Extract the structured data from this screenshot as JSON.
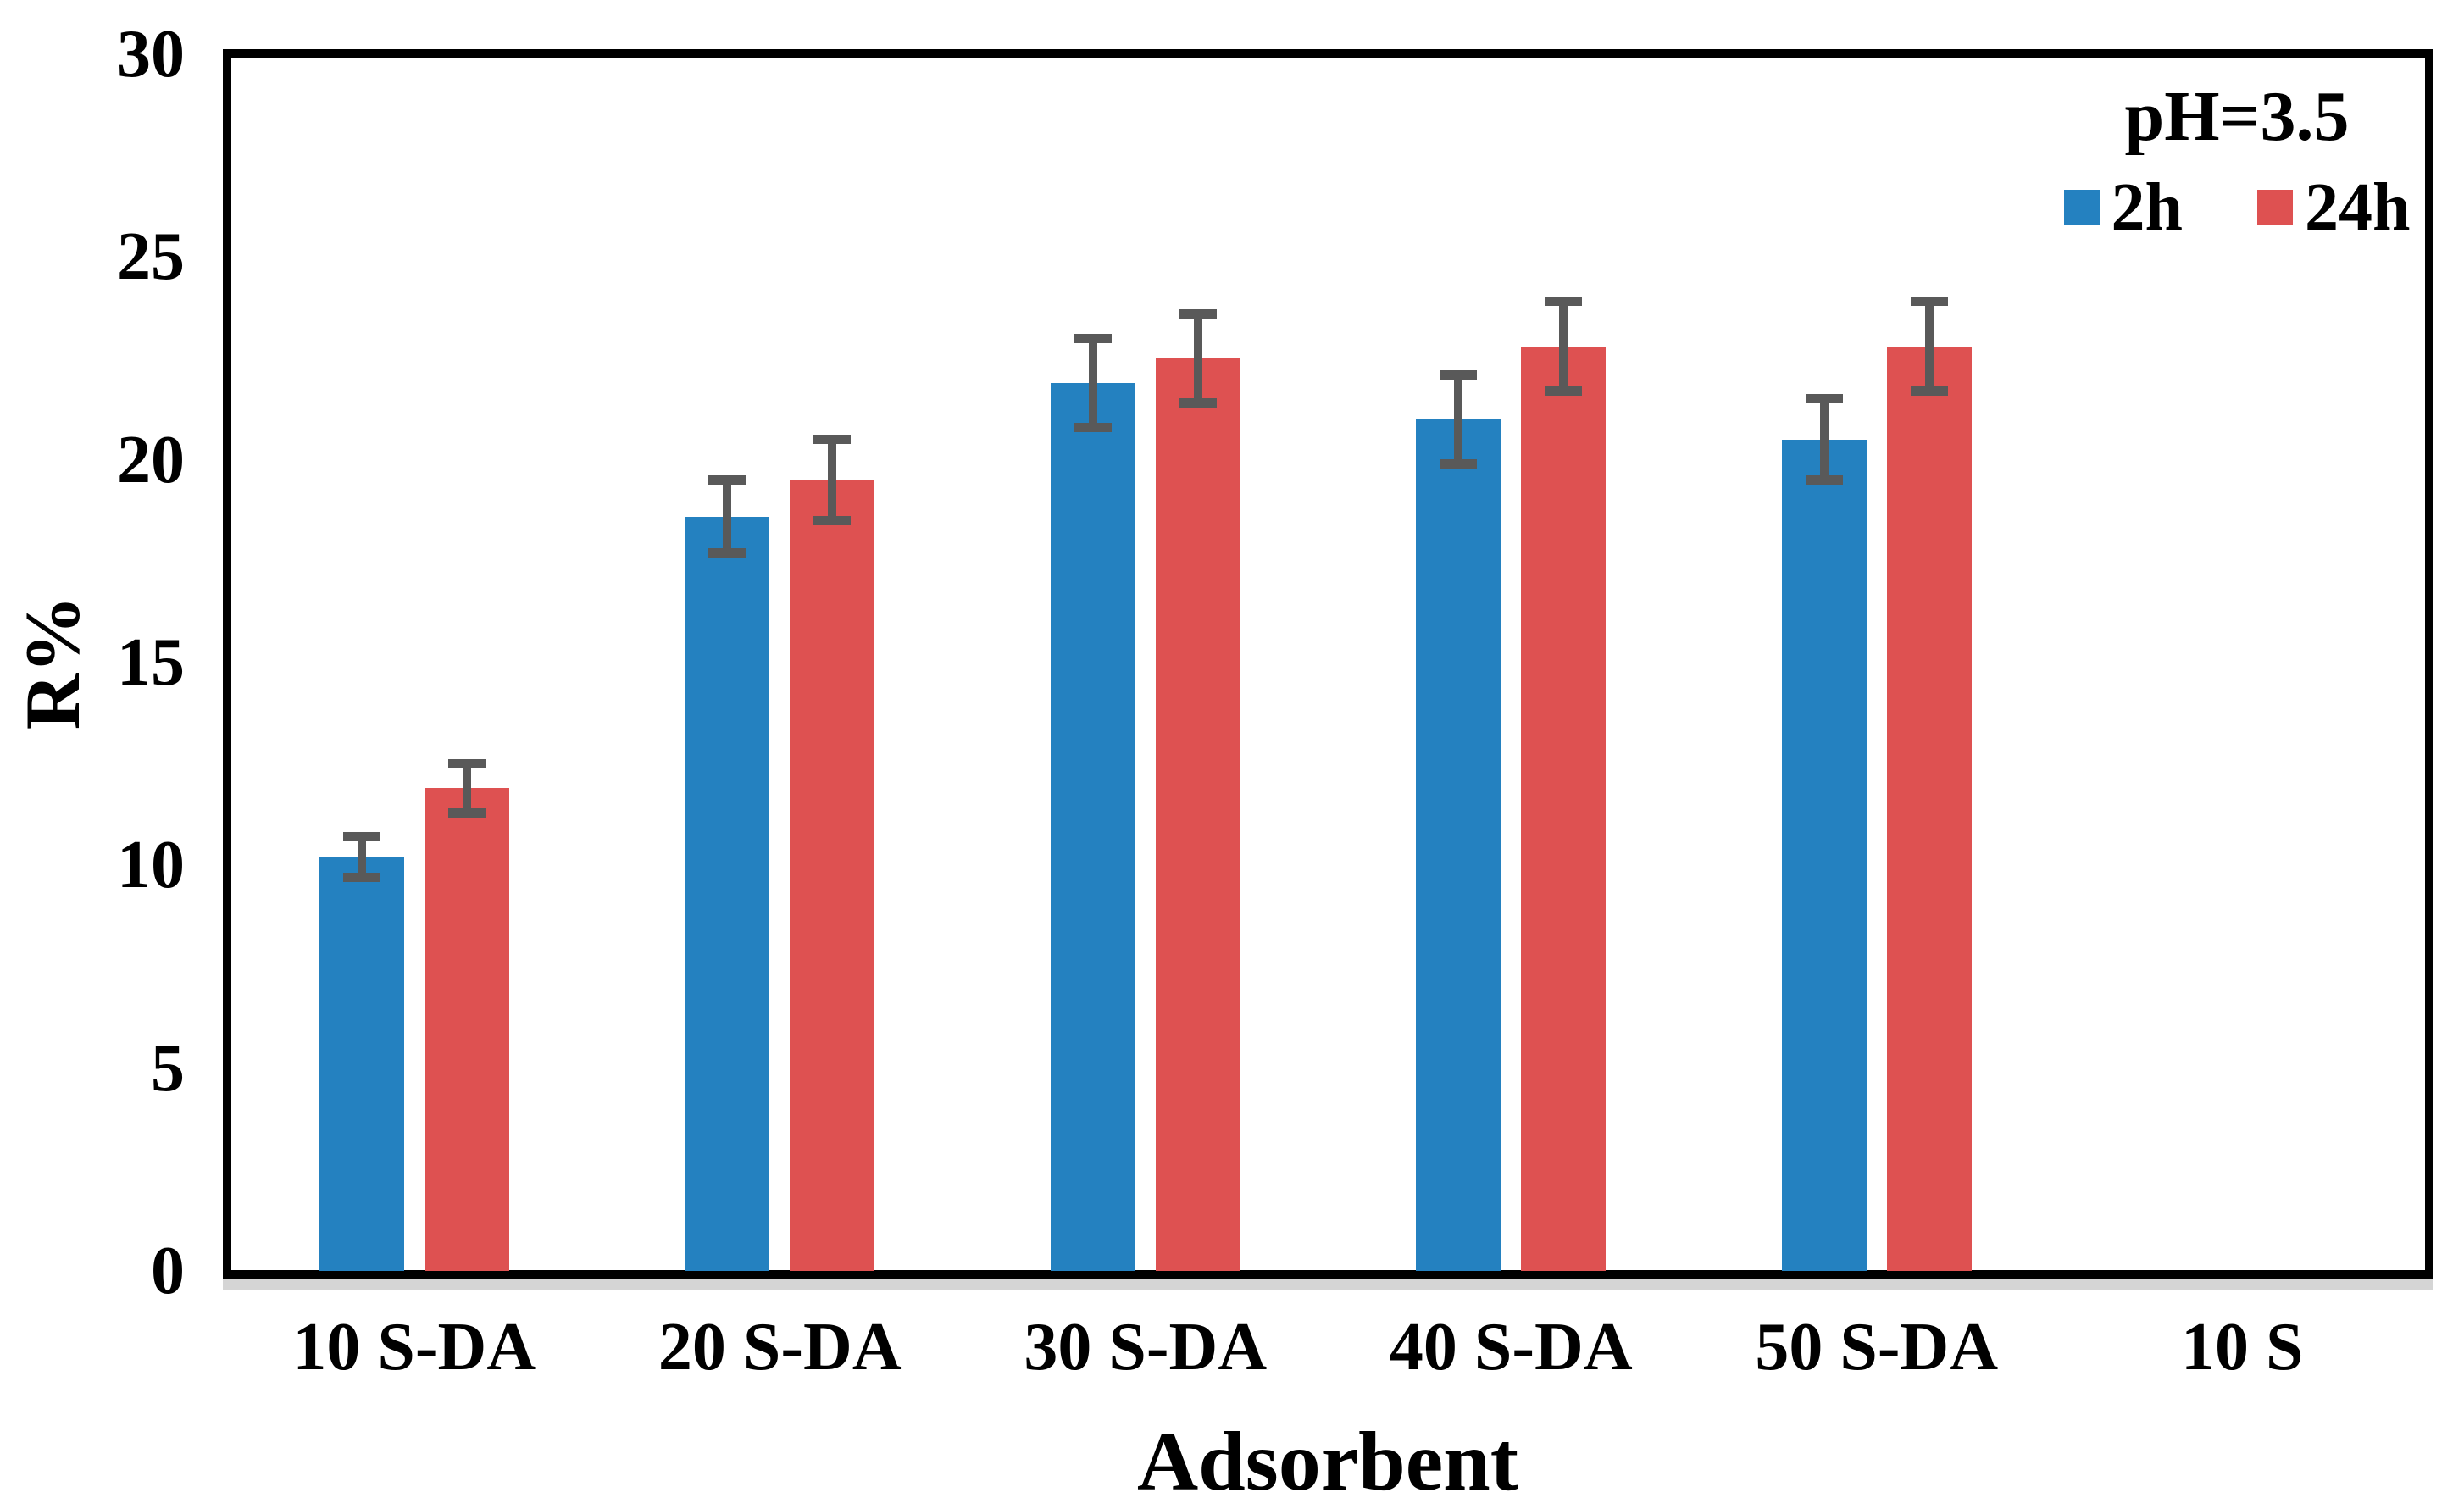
{
  "chart_data": {
    "type": "bar",
    "title": "",
    "legend_title": "pH=3.5",
    "xlabel": "Adsorbent",
    "ylabel": "R%",
    "categories": [
      "10 S-DA",
      "20 S-DA",
      "30 S-DA",
      "40 S-DA",
      "50 S-DA",
      "10 S"
    ],
    "series": [
      {
        "name": "2h",
        "color": "#2481c0",
        "values": [
          10.2,
          18.6,
          21.9,
          21.0,
          20.5,
          0
        ],
        "errors": [
          0.5,
          0.9,
          1.1,
          1.1,
          1.0,
          0
        ]
      },
      {
        "name": "24h",
        "color": "#de5151",
        "values": [
          11.9,
          19.5,
          22.5,
          22.8,
          22.8,
          0
        ],
        "errors": [
          0.6,
          1.0,
          1.1,
          1.1,
          1.1,
          0
        ]
      }
    ],
    "ylim": [
      0,
      30
    ],
    "yticks": [
      0,
      5,
      10,
      15,
      20,
      25,
      30
    ],
    "grid": false,
    "legend_position": "top-right",
    "error_bar_color": "#595959",
    "axis_color": "#000000",
    "baseline_shadow_color": "#d5d5d5"
  }
}
